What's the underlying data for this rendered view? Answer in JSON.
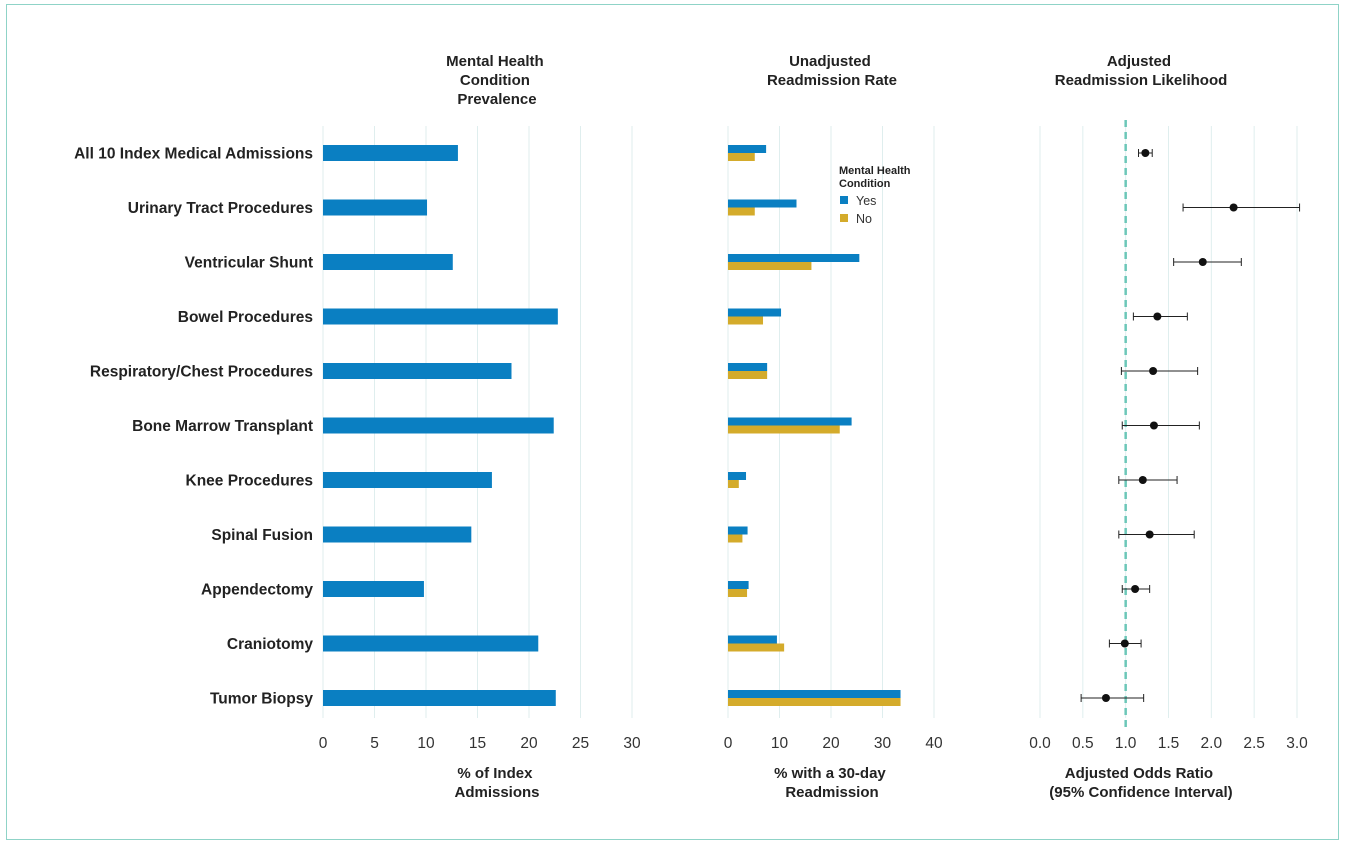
{
  "chart_data": [
    {
      "type": "bar",
      "title": "Mental Health Condition Prevalence",
      "xlabel": "% of Index Admissions",
      "xlim": [
        0,
        30
      ],
      "xticks": [
        "0",
        "5",
        "10",
        "15",
        "20",
        "25",
        "30"
      ],
      "categories": [
        "All 10 Index Medical Admissions",
        "Urinary Tract Procedures",
        "Ventricular Shunt",
        "Bowel Procedures",
        "Respiratory/Chest Procedures",
        "Bone Marrow Transplant",
        "Knee Procedures",
        "Spinal Fusion",
        "Appendectomy",
        "Craniotomy",
        "Tumor Biopsy"
      ],
      "values": [
        13.1,
        10.1,
        12.6,
        22.8,
        18.3,
        22.4,
        16.4,
        14.4,
        9.8,
        20.9,
        22.6
      ],
      "color": "#0a7fc2"
    },
    {
      "type": "bar",
      "title": "Unadjusted Readmission Rate",
      "xlabel": "% with a 30-day Readmission",
      "xlim": [
        0,
        40
      ],
      "xticks": [
        "0",
        "10",
        "20",
        "30",
        "40"
      ],
      "legend": {
        "title": "Mental Health Condition",
        "placement": "top-right"
      },
      "series": [
        {
          "name": "Yes",
          "color": "#0a7fc2",
          "values": [
            7.4,
            13.3,
            25.5,
            10.3,
            7.6,
            24.0,
            3.5,
            3.8,
            4.0,
            9.5,
            33.5
          ]
        },
        {
          "name": "No",
          "color": "#d4ab2b",
          "values": [
            5.2,
            5.2,
            16.2,
            6.8,
            7.6,
            21.7,
            2.1,
            2.8,
            3.7,
            10.9,
            33.5
          ]
        }
      ]
    },
    {
      "type": "scatter",
      "title": "Adjusted Readmission Likelihood",
      "xlabel": "Adjusted Odds Ratio (95% Confidence Interval)",
      "xlim": [
        0.0,
        3.0
      ],
      "xticks": [
        "0.0",
        "0.5",
        "1.0",
        "1.5",
        "2.0",
        "2.5",
        "3.0"
      ],
      "reference_line": 1.0,
      "reference_color": "#6cc7b8",
      "estimates": [
        1.23,
        2.26,
        1.9,
        1.37,
        1.32,
        1.33,
        1.2,
        1.28,
        1.11,
        0.99,
        0.77
      ],
      "ci_low": [
        1.15,
        1.67,
        1.56,
        1.09,
        0.95,
        0.96,
        0.92,
        0.92,
        0.96,
        0.81,
        0.48
      ],
      "ci_high": [
        1.31,
        3.03,
        2.35,
        1.72,
        1.84,
        1.86,
        1.6,
        1.8,
        1.28,
        1.18,
        1.21
      ]
    }
  ]
}
